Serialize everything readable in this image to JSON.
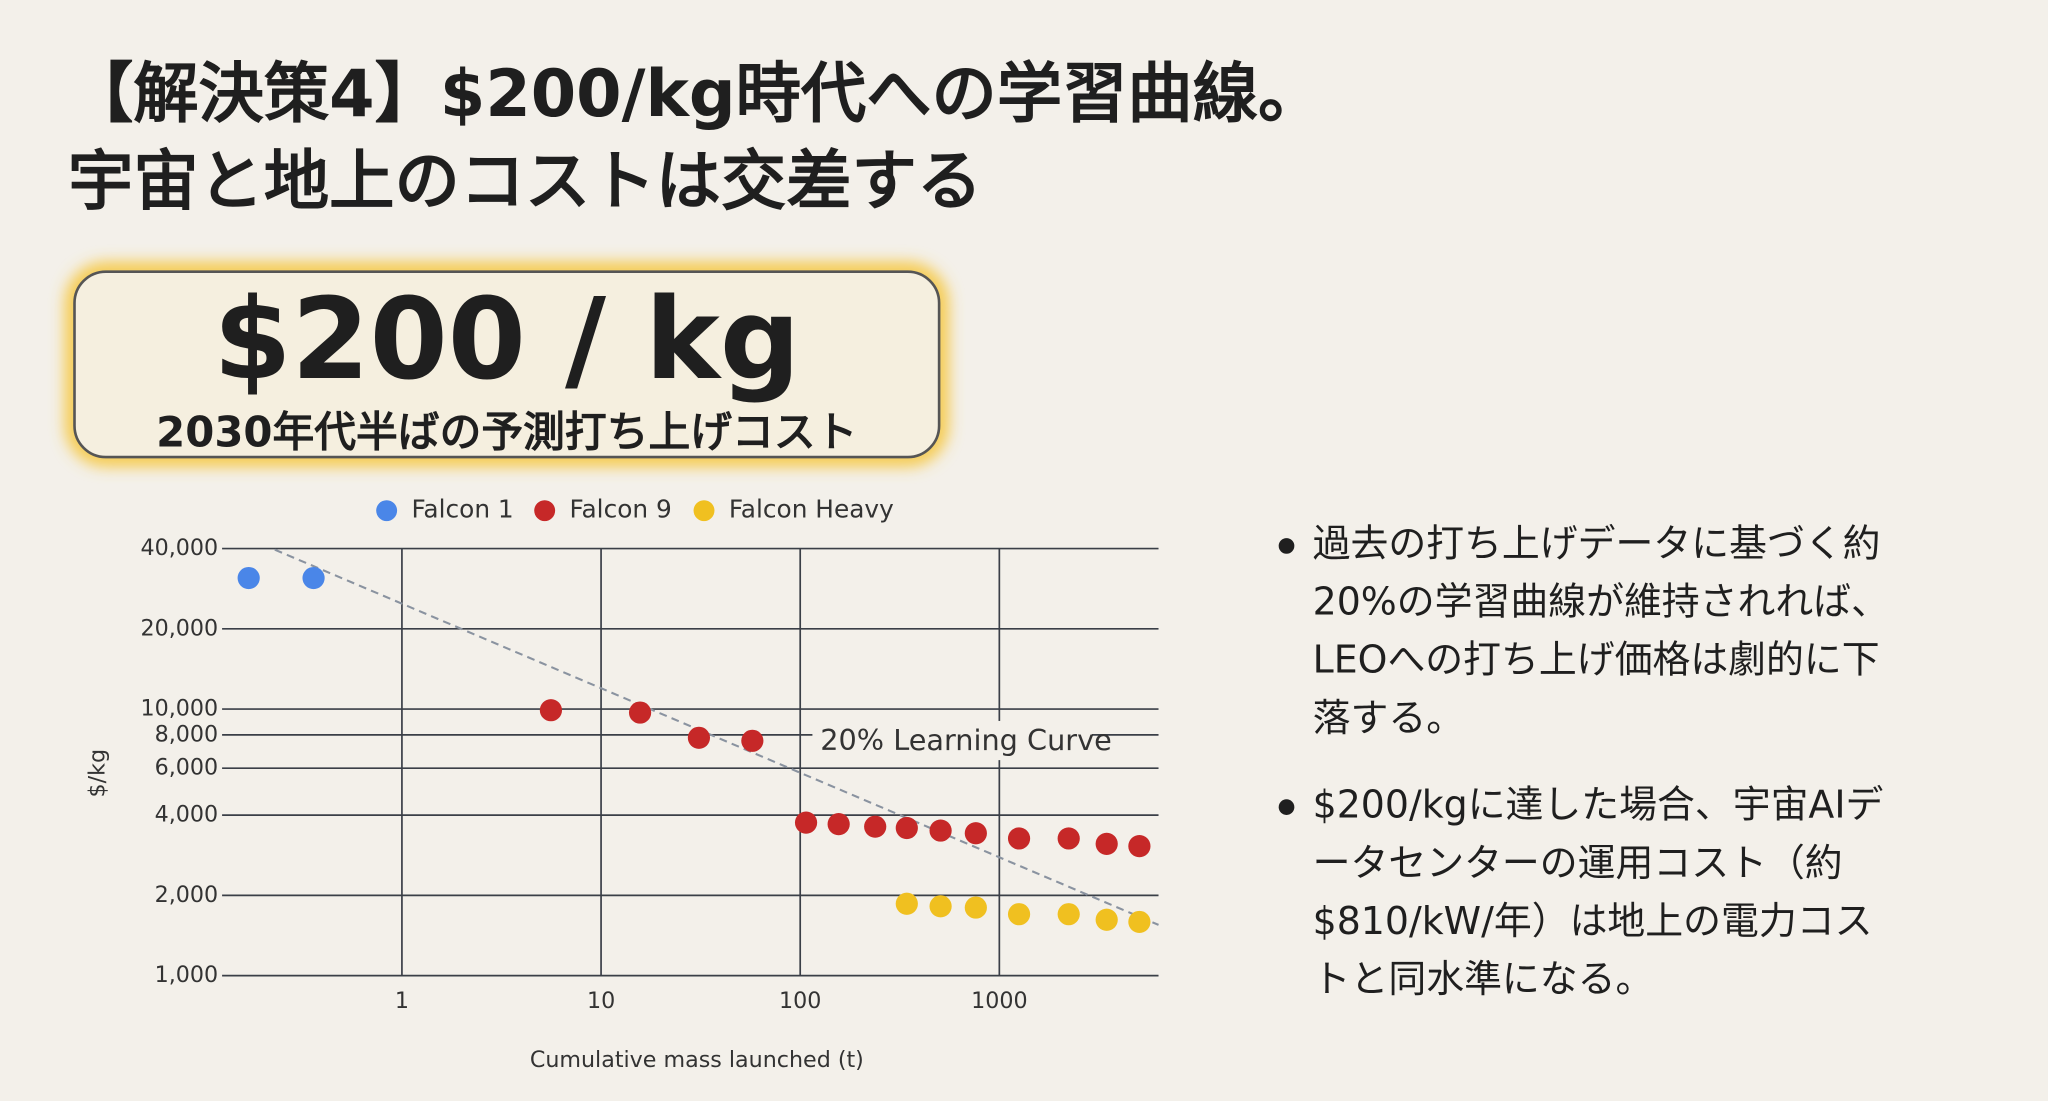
{
  "header": {
    "title_line1": "【解決策4】$200/kg時代への学習曲線。",
    "title_line2": "宇宙と地上のコストは交差する"
  },
  "callout": {
    "value": "$200 / kg",
    "caption": "2030年代半ばの予測打ち上げコスト"
  },
  "chart_data": {
    "type": "scatter",
    "x_label": "Cumulative mass launched (t)",
    "y_label": "$/kg",
    "xscale": "log",
    "yscale": "log",
    "grid": true,
    "legend": "top",
    "xlim": [
      0.125,
      6300
    ],
    "ylim": [
      1000,
      40000
    ],
    "xticks": [
      1,
      10,
      100,
      1000
    ],
    "yticks": [
      {
        "value": 1000,
        "label": "1,000"
      },
      {
        "value": 2000,
        "label": "2,000"
      },
      {
        "value": 4000,
        "label": "4,000"
      },
      {
        "value": 6000,
        "label": "6,000"
      },
      {
        "value": 8000,
        "label": "8,000"
      },
      {
        "value": 10000,
        "label": "10,000"
      },
      {
        "value": 20000,
        "label": "20,000"
      },
      {
        "value": 40000,
        "label": "40,000"
      }
    ],
    "series": [
      {
        "name": "Falcon 1",
        "color": "#4a86e8",
        "x": [
          0.17,
          0.36
        ],
        "values": [
          31000,
          31000
        ]
      },
      {
        "name": "Falcon 9",
        "color": "#c62828",
        "x": [
          5.6,
          15.7,
          31,
          57.5,
          107,
          156,
          238,
          343,
          507,
          762,
          1256,
          2230,
          3460,
          5050
        ],
        "values": [
          9900,
          9700,
          7800,
          7600,
          3750,
          3700,
          3620,
          3580,
          3500,
          3420,
          3270,
          3270,
          3120,
          3060
        ]
      },
      {
        "name": "Falcon Heavy",
        "color": "#f0c020",
        "x": [
          343,
          507,
          762,
          1256,
          2230,
          3460,
          5050
        ],
        "values": [
          1860,
          1820,
          1800,
          1700,
          1700,
          1620,
          1590
        ]
      }
    ],
    "trend": {
      "label": "20% Learning Curve",
      "color": "#8a93a0",
      "x": [
        0.23,
        6300
      ],
      "values": [
        39600,
        1550
      ]
    }
  },
  "bullets": [
    {
      "lines": [
        "過去の打ち上げデータに基づく約",
        "20%の学習曲線が維持されれば、",
        "LEOへの打ち上げ価格は劇的に下",
        "落する。"
      ]
    },
    {
      "lines": [
        "$200/kgに達した場合、宇宙AIデ",
        "ータセンターの運用コスト（約",
        "$810/kW/年）は地上の電力コス",
        "トと同水準になる。"
      ]
    }
  ]
}
